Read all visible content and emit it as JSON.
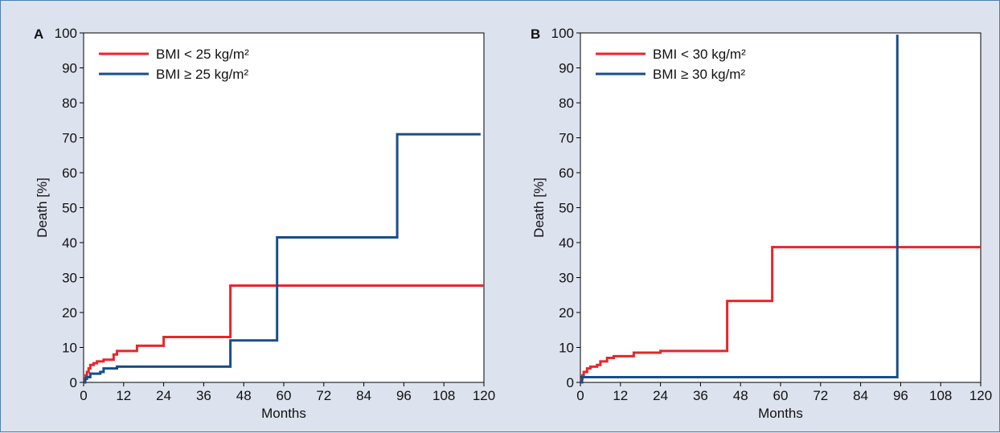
{
  "chart_data": [
    {
      "type": "line",
      "step": true,
      "panel_label": "A",
      "title": "",
      "xlabel": "Months",
      "ylabel": "Death [%]",
      "xlim": [
        0,
        120
      ],
      "ylim": [
        0,
        100
      ],
      "xticks": [
        0,
        12,
        24,
        36,
        48,
        60,
        72,
        84,
        96,
        108,
        120
      ],
      "yticks": [
        0,
        10,
        20,
        30,
        40,
        50,
        60,
        70,
        80,
        90,
        100
      ],
      "legend_position": "top-left",
      "series": [
        {
          "name": "BMI < 25 kg/m²",
          "color": "#e8262a",
          "x": [
            0,
            0.3,
            0.6,
            1,
            1.5,
            2,
            3,
            4,
            6,
            9,
            10,
            16,
            24,
            44,
            121
          ],
          "y": [
            0,
            1,
            2,
            3,
            4,
            5,
            5.5,
            6,
            6.5,
            8,
            9,
            10.5,
            13,
            27.7,
            27.7
          ]
        },
        {
          "name": "BMI ≥ 25 kg/m²",
          "color": "#174e8c",
          "x": [
            0,
            0.5,
            1,
            2,
            5,
            6,
            10,
            44,
            58,
            94,
            119
          ],
          "y": [
            0,
            1,
            1.5,
            2.5,
            3,
            4,
            4.5,
            12,
            41.5,
            71,
            71
          ]
        }
      ]
    },
    {
      "type": "line",
      "step": true,
      "panel_label": "B",
      "title": "",
      "xlabel": "Months",
      "ylabel": "Death [%]",
      "xlim": [
        0,
        120
      ],
      "ylim": [
        0,
        100
      ],
      "xticks": [
        0,
        12,
        24,
        36,
        48,
        60,
        72,
        84,
        96,
        108,
        120
      ],
      "yticks": [
        0,
        10,
        20,
        30,
        40,
        50,
        60,
        70,
        80,
        90,
        100
      ],
      "legend_position": "top-left",
      "series": [
        {
          "name": "BMI < 30 kg/m²",
          "color": "#e8262a",
          "x": [
            0,
            0.3,
            0.6,
            1,
            2,
            3,
            5,
            6,
            8,
            10,
            16,
            24,
            44,
            57.5,
            121
          ],
          "y": [
            0,
            1,
            2,
            3,
            4,
            4.5,
            5,
            6,
            7,
            7.5,
            8.5,
            9,
            23.3,
            38.7,
            38.7
          ]
        },
        {
          "name": "BMI ≥ 30 kg/m²",
          "color": "#174e8c",
          "x": [
            0,
            0.5,
            95
          ],
          "y": [
            0,
            1.5,
            99.5
          ]
        }
      ]
    }
  ]
}
